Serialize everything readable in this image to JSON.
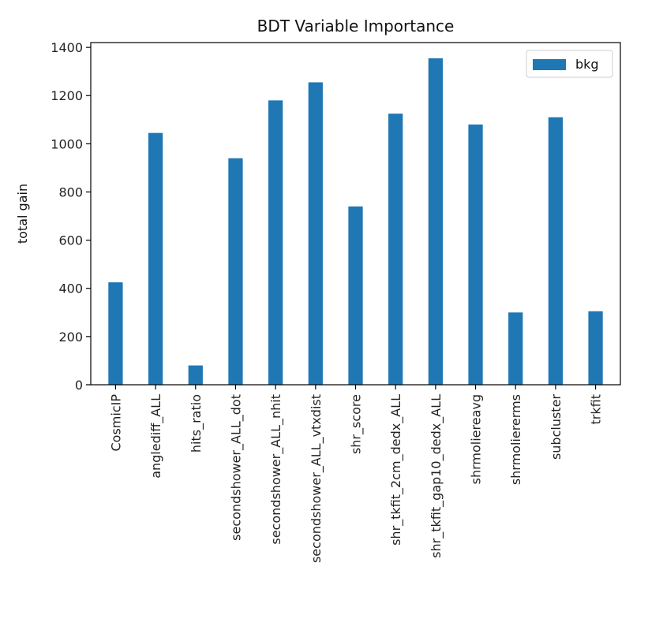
{
  "colors": {
    "bar": "#1f77b4",
    "axis": "#000000",
    "legend_border": "#cccccc"
  },
  "chart_data": {
    "type": "bar",
    "title": "BDT Variable Importance",
    "xlabel": "",
    "ylabel": "total gain",
    "ylim": [
      0,
      1420
    ],
    "yticks": [
      0,
      200,
      400,
      600,
      800,
      1000,
      1200,
      1400
    ],
    "grid": false,
    "legend_position": "top-right",
    "categories": [
      "CosmicIP",
      "anglediff_ALL",
      "hits_ratio",
      "secondshower_ALL_dot",
      "secondshower_ALL_nhit",
      "secondshower_ALL_vtxdist",
      "shr_score",
      "shr_tkfit_2cm_dedx_ALL",
      "shr_tkfit_gap10_dedx_ALL",
      "shrmoliereavg",
      "shrmoliererms",
      "subcluster",
      "trkfit"
    ],
    "series": [
      {
        "name": "bkg",
        "values": [
          425,
          1045,
          80,
          940,
          1180,
          1255,
          740,
          1125,
          1355,
          1080,
          300,
          1110,
          305
        ]
      }
    ]
  }
}
